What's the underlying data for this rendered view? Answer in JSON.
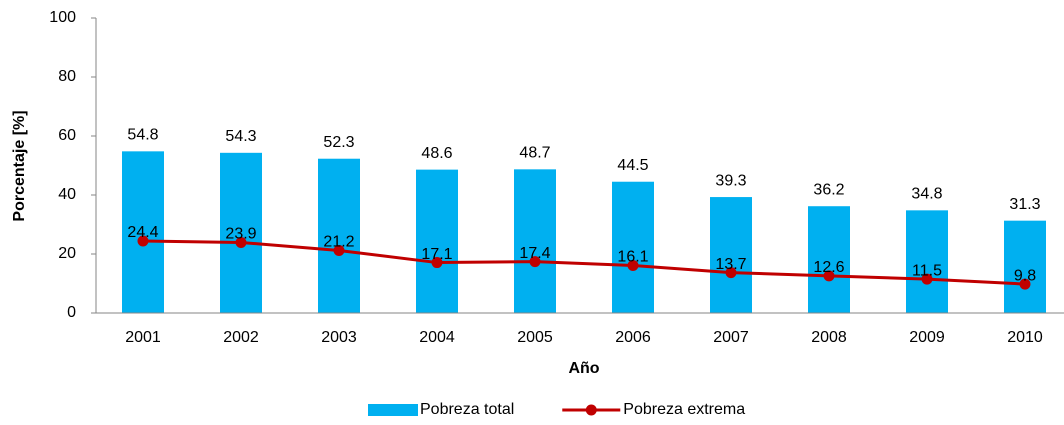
{
  "chart_data": {
    "type": "combo",
    "x_label": "Año",
    "y_label": "Porcentaje [%]",
    "categories": [
      "2001",
      "2002",
      "2003",
      "2004",
      "2005",
      "2006",
      "2007",
      "2008",
      "2009",
      "2010"
    ],
    "series": [
      {
        "name": "Pobreza total",
        "type": "bar",
        "color": "#00b0f0",
        "values": [
          54.8,
          54.3,
          52.3,
          48.6,
          48.7,
          44.5,
          39.3,
          36.2,
          34.8,
          31.3
        ]
      },
      {
        "name": "Pobreza extrema",
        "type": "line",
        "color": "#c00000",
        "values": [
          24.4,
          23.9,
          21.2,
          17.1,
          17.4,
          16.1,
          13.7,
          12.6,
          11.5,
          9.8
        ]
      }
    ],
    "ylim": [
      0,
      100
    ],
    "yticks": [
      0,
      20,
      40,
      60,
      80,
      100
    ],
    "grid": false,
    "legend": "bottom"
  }
}
